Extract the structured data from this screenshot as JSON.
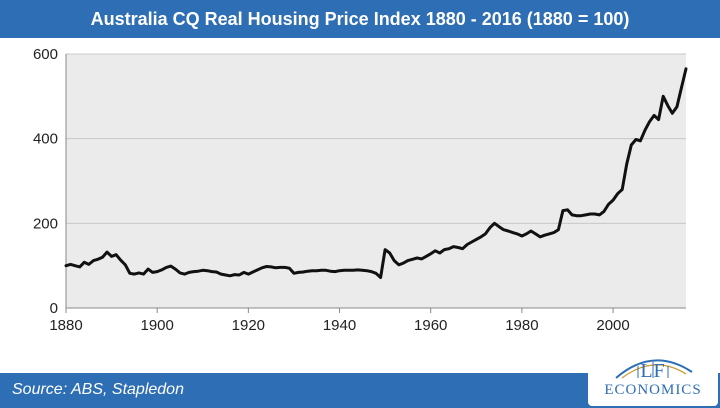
{
  "header": {
    "title": "Australia CQ Real Housing Price Index 1880 - 2016 (1880 = 100)"
  },
  "footer": {
    "source": "Source: ABS, Stapledon"
  },
  "logo": {
    "line1": "LF",
    "line2": "ECONOMICS"
  },
  "colors": {
    "header_bg": "#2e6eb5",
    "plot_bg": "#ebebeb",
    "line": "#111111",
    "grid": "#c8c8c8",
    "logo": "#2e6eb5"
  },
  "chart_data": {
    "type": "line",
    "title": "Australia CQ Real Housing Price Index 1880 - 2016 (1880 = 100)",
    "xlabel": "",
    "ylabel": "",
    "xlim": [
      1880,
      2016
    ],
    "ylim": [
      0,
      600
    ],
    "xticks": [
      1880,
      1900,
      1920,
      1940,
      1960,
      1980,
      2000
    ],
    "yticks": [
      0,
      200,
      400,
      600
    ],
    "grid": true,
    "legend": "none",
    "series": [
      {
        "points": [
          [
            1880,
            100
          ],
          [
            1881,
            103
          ],
          [
            1882,
            100
          ],
          [
            1883,
            97
          ],
          [
            1884,
            108
          ],
          [
            1885,
            103
          ],
          [
            1886,
            112
          ],
          [
            1887,
            115
          ],
          [
            1888,
            120
          ],
          [
            1889,
            132
          ],
          [
            1890,
            122
          ],
          [
            1891,
            126
          ],
          [
            1892,
            113
          ],
          [
            1893,
            102
          ],
          [
            1894,
            82
          ],
          [
            1895,
            80
          ],
          [
            1896,
            83
          ],
          [
            1897,
            80
          ],
          [
            1898,
            92
          ],
          [
            1899,
            84
          ],
          [
            1900,
            86
          ],
          [
            1901,
            90
          ],
          [
            1902,
            96
          ],
          [
            1903,
            99
          ],
          [
            1904,
            92
          ],
          [
            1905,
            83
          ],
          [
            1906,
            80
          ],
          [
            1907,
            84
          ],
          [
            1908,
            86
          ],
          [
            1909,
            87
          ],
          [
            1910,
            89
          ],
          [
            1911,
            88
          ],
          [
            1912,
            86
          ],
          [
            1913,
            85
          ],
          [
            1914,
            80
          ],
          [
            1915,
            78
          ],
          [
            1916,
            76
          ],
          [
            1917,
            79
          ],
          [
            1918,
            78
          ],
          [
            1919,
            84
          ],
          [
            1920,
            80
          ],
          [
            1921,
            85
          ],
          [
            1922,
            90
          ],
          [
            1923,
            95
          ],
          [
            1924,
            98
          ],
          [
            1925,
            97
          ],
          [
            1926,
            95
          ],
          [
            1927,
            96
          ],
          [
            1928,
            96
          ],
          [
            1929,
            94
          ],
          [
            1930,
            82
          ],
          [
            1931,
            84
          ],
          [
            1932,
            85
          ],
          [
            1933,
            87
          ],
          [
            1934,
            88
          ],
          [
            1935,
            88
          ],
          [
            1936,
            89
          ],
          [
            1937,
            89
          ],
          [
            1938,
            87
          ],
          [
            1939,
            86
          ],
          [
            1940,
            88
          ],
          [
            1941,
            89
          ],
          [
            1942,
            89
          ],
          [
            1943,
            89
          ],
          [
            1944,
            90
          ],
          [
            1945,
            89
          ],
          [
            1946,
            88
          ],
          [
            1947,
            86
          ],
          [
            1948,
            82
          ],
          [
            1949,
            72
          ],
          [
            1950,
            138
          ],
          [
            1951,
            130
          ],
          [
            1952,
            112
          ],
          [
            1953,
            102
          ],
          [
            1954,
            106
          ],
          [
            1955,
            112
          ],
          [
            1956,
            115
          ],
          [
            1957,
            118
          ],
          [
            1958,
            116
          ],
          [
            1959,
            122
          ],
          [
            1960,
            128
          ],
          [
            1961,
            135
          ],
          [
            1962,
            130
          ],
          [
            1963,
            138
          ],
          [
            1964,
            140
          ],
          [
            1965,
            145
          ],
          [
            1966,
            143
          ],
          [
            1967,
            140
          ],
          [
            1968,
            150
          ],
          [
            1969,
            156
          ],
          [
            1970,
            162
          ],
          [
            1971,
            168
          ],
          [
            1972,
            175
          ],
          [
            1973,
            190
          ],
          [
            1974,
            200
          ],
          [
            1975,
            192
          ],
          [
            1976,
            185
          ],
          [
            1977,
            182
          ],
          [
            1978,
            178
          ],
          [
            1979,
            175
          ],
          [
            1980,
            170
          ],
          [
            1981,
            175
          ],
          [
            1982,
            182
          ],
          [
            1983,
            175
          ],
          [
            1984,
            168
          ],
          [
            1985,
            172
          ],
          [
            1986,
            175
          ],
          [
            1987,
            178
          ],
          [
            1988,
            185
          ],
          [
            1989,
            230
          ],
          [
            1990,
            232
          ],
          [
            1991,
            220
          ],
          [
            1992,
            218
          ],
          [
            1993,
            218
          ],
          [
            1994,
            220
          ],
          [
            1995,
            222
          ],
          [
            1996,
            222
          ],
          [
            1997,
            220
          ],
          [
            1998,
            228
          ],
          [
            1999,
            245
          ],
          [
            2000,
            255
          ],
          [
            2001,
            270
          ],
          [
            2002,
            280
          ],
          [
            2003,
            340
          ],
          [
            2004,
            385
          ],
          [
            2005,
            398
          ],
          [
            2006,
            395
          ],
          [
            2007,
            420
          ],
          [
            2008,
            440
          ],
          [
            2009,
            455
          ],
          [
            2010,
            445
          ],
          [
            2011,
            500
          ],
          [
            2012,
            478
          ],
          [
            2013,
            460
          ],
          [
            2014,
            475
          ],
          [
            2015,
            520
          ],
          [
            2016,
            565
          ]
        ]
      }
    ]
  }
}
